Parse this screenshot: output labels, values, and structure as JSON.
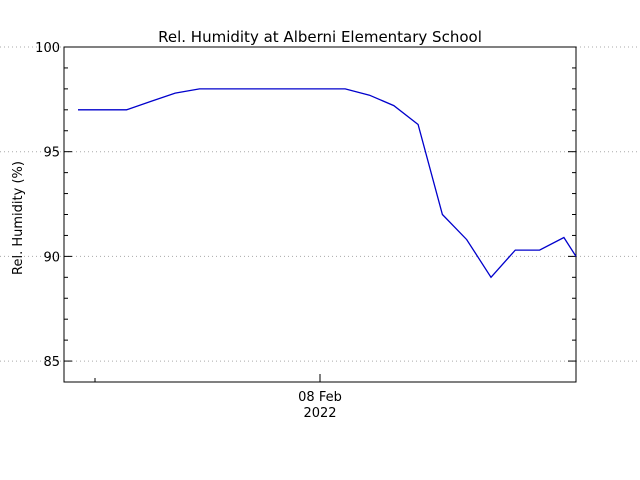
{
  "chart_data": {
    "type": "line",
    "title": "Rel. Humidity at Alberni Elementary School",
    "xlabel": "",
    "ylabel": "Rel. Humidity (%)",
    "x_date_label": {
      "day": "08 Feb",
      "year": "2022"
    },
    "ylim": [
      84,
      100
    ],
    "yticks": [
      85,
      90,
      95,
      100
    ],
    "grid": "y-dotted",
    "series": [
      {
        "color": "#0000cc",
        "points": [
          {
            "x": "2022-02-07 03:00",
            "y": 97.0
          },
          {
            "x": "2022-02-07 04:00",
            "y": 97.0
          },
          {
            "x": "2022-02-07 05:00",
            "y": 97.0
          },
          {
            "x": "2022-02-07 06:00",
            "y": 97.4
          },
          {
            "x": "2022-02-07 07:00",
            "y": 97.8
          },
          {
            "x": "2022-02-07 08:00",
            "y": 98.0
          },
          {
            "x": "2022-02-07 09:00",
            "y": 98.0
          },
          {
            "x": "2022-02-07 10:00",
            "y": 98.0
          },
          {
            "x": "2022-02-07 11:00",
            "y": 98.0
          },
          {
            "x": "2022-02-07 12:00",
            "y": 98.0
          },
          {
            "x": "2022-02-07 13:00",
            "y": 98.0
          },
          {
            "x": "2022-02-07 14:00",
            "y": 98.0
          },
          {
            "x": "2022-02-07 15:00",
            "y": 97.7
          },
          {
            "x": "2022-02-07 16:00",
            "y": 97.2
          },
          {
            "x": "2022-02-07 17:00",
            "y": 96.3
          },
          {
            "x": "2022-02-07 18:00",
            "y": 92.0
          },
          {
            "x": "2022-02-07 19:00",
            "y": 90.8
          },
          {
            "x": "2022-02-07 20:00",
            "y": 89.0
          },
          {
            "x": "2022-02-07 21:00",
            "y": 90.3
          },
          {
            "x": "2022-02-07 22:00",
            "y": 90.3
          },
          {
            "x": "2022-02-07 23:00",
            "y": 90.9
          },
          {
            "x": "2022-02-07 23:30",
            "y": 90.0
          }
        ]
      }
    ]
  }
}
